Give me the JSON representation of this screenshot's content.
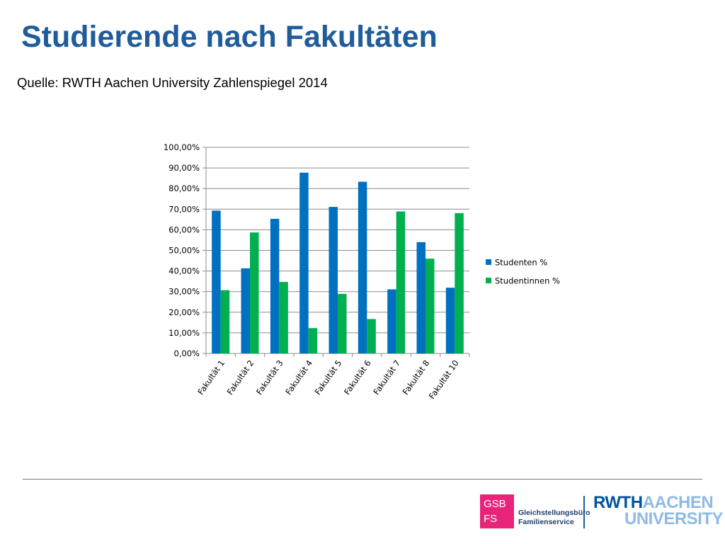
{
  "title": "Studierende nach Fakultäten",
  "subtitle": "Quelle: RWTH Aachen University Zahlenspiegel 2014",
  "colors": {
    "title": "#1f5c99",
    "studenten": "#0070c0",
    "studentinnen": "#00b050",
    "gsb_logo": "#e8247a",
    "rwth_dark": "#00549f",
    "rwth_light": "#8ebae5"
  },
  "chart_data": {
    "type": "bar",
    "categories": [
      "Fakultät 1",
      "Fakultät 2",
      "Fakultät 3",
      "Fakultät 4",
      "Fakultät 5",
      "Fakultät 6",
      "Fakultät 7",
      "Fakultät 8",
      "Fakultät 10"
    ],
    "series": [
      {
        "name": "Studenten %",
        "values": [
          69.3,
          41.3,
          65.3,
          87.7,
          71.1,
          83.3,
          31.1,
          54.0,
          31.9
        ]
      },
      {
        "name": "Studentinnen %",
        "values": [
          30.7,
          58.7,
          34.7,
          12.3,
          28.9,
          16.7,
          68.9,
          46.0,
          68.1
        ]
      }
    ],
    "ylim": [
      0,
      100
    ],
    "yticks": [
      "0,00%",
      "10,00%",
      "20,00%",
      "30,00%",
      "40,00%",
      "50,00%",
      "60,00%",
      "70,00%",
      "80,00%",
      "90,00%",
      "100,00%"
    ],
    "grid": true,
    "legend": "right"
  },
  "footer": {
    "gsb_logo": {
      "line1": "GSB",
      "line2": "FS"
    },
    "gsb_name": {
      "line1": "Gleichstellungsbüro",
      "line2": "Familienservice"
    },
    "rwth_logo": {
      "part1": "RWTH",
      "part2": "AACHEN",
      "part3": "UNIVERSITY"
    }
  }
}
